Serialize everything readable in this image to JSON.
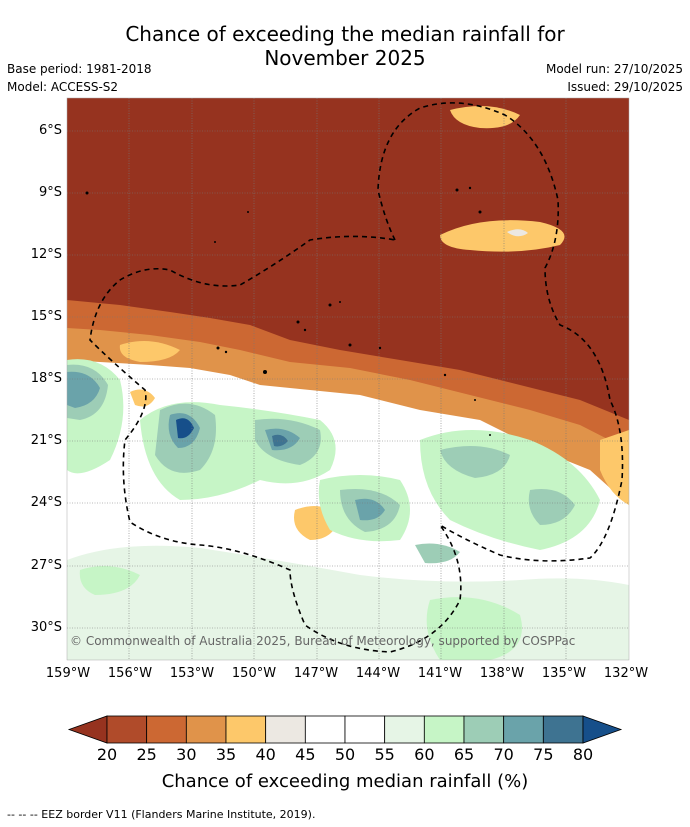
{
  "header": {
    "title_line1": "Chance of exceeding the median rainfall for",
    "title_line2": "November 2025",
    "base_period": "Base period: 1981-2018",
    "model": "Model: ACCESS-S2",
    "model_run": "Model run: 27/10/2025",
    "issued": "Issued: 29/10/2025"
  },
  "map": {
    "lat_labels": [
      "6°S",
      "9°S",
      "12°S",
      "15°S",
      "18°S",
      "21°S",
      "24°S",
      "27°S",
      "30°S"
    ],
    "lon_labels": [
      "159°W",
      "156°W",
      "153°W",
      "150°W",
      "147°W",
      "144°W",
      "141°W",
      "138°W",
      "135°W",
      "132°W"
    ],
    "copyright": "© Commonwealth of Australia 2025, Bureau of Meteorology, supported by COSPPac"
  },
  "colorbar": {
    "ticks": [
      "20",
      "25",
      "30",
      "35",
      "40",
      "45",
      "50",
      "55",
      "60",
      "65",
      "70",
      "75",
      "80"
    ],
    "colors": [
      "#96331f",
      "#b04b2a",
      "#cc6833",
      "#e0934a",
      "#fdc86a",
      "#ece8e2",
      "#ffffff",
      "#ffffff",
      "#e6f5e6",
      "#c6f5c6",
      "#9dcdb6",
      "#6aa3aa",
      "#3e7391",
      "#164f8a"
    ],
    "label": "Chance of exceeding median rainfall (%)"
  },
  "footer": "--  --  -- EEZ border V11 (Flanders Marine Institute, 2019)."
}
